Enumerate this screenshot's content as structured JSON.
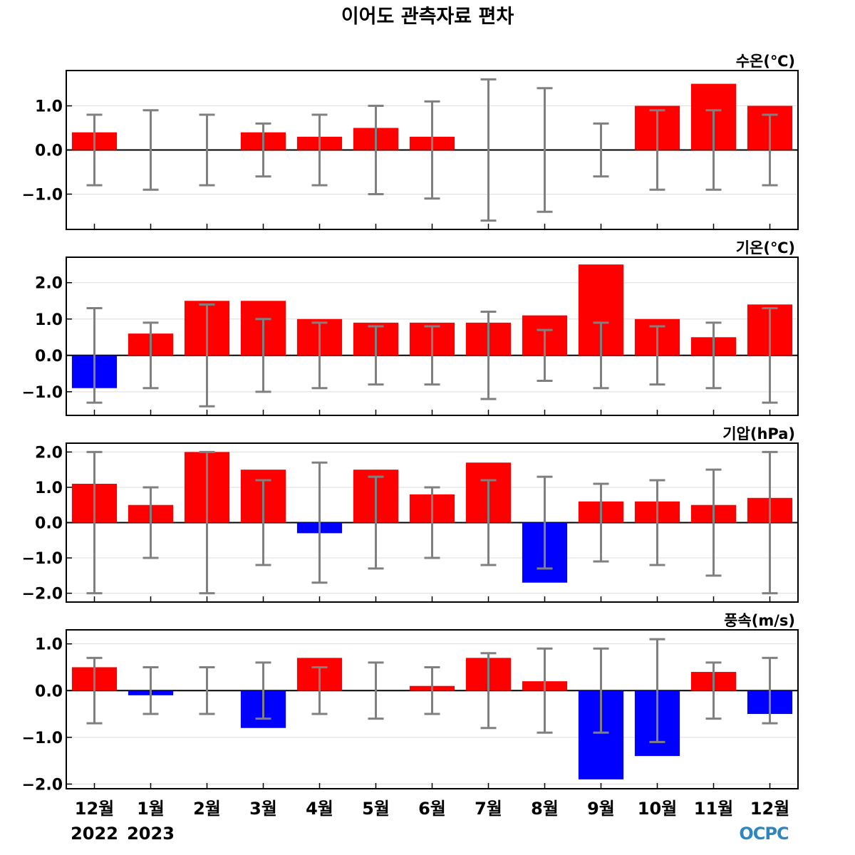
{
  "title": "이어도 관측자료 편차",
  "categories": [
    "12월",
    "1월",
    "2월",
    "3월",
    "4월",
    "5월",
    "6월",
    "7월",
    "8월",
    "9월",
    "10월",
    "11월",
    "12월"
  ],
  "year_labels": [
    {
      "text": "2022",
      "category_index": 0
    },
    {
      "text": "2023",
      "category_index": 1
    }
  ],
  "logo": "OCPC",
  "colors": {
    "positive": "#ff0000",
    "negative": "#0000ff",
    "errorbar": "#808080",
    "zero_line": "#000000",
    "grid": "#dddddd"
  },
  "chart_data": [
    {
      "type": "bar",
      "title": "수온(℃)",
      "categories": [
        "12월",
        "1월",
        "2월",
        "3월",
        "4월",
        "5월",
        "6월",
        "7월",
        "8월",
        "9월",
        "10월",
        "11월",
        "12월"
      ],
      "values": [
        0.4,
        0.0,
        0.0,
        0.4,
        0.3,
        0.5,
        0.3,
        0.0,
        0.0,
        0.0,
        1.0,
        1.5,
        1.0
      ],
      "error_upper": [
        0.8,
        0.9,
        0.8,
        0.6,
        0.8,
        1.0,
        1.1,
        1.6,
        1.4,
        0.6,
        0.9,
        0.9,
        0.8
      ],
      "error_lower": [
        -0.8,
        -0.9,
        -0.8,
        -0.6,
        -0.8,
        -1.0,
        -1.1,
        -1.6,
        -1.4,
        -0.6,
        -0.9,
        -0.9,
        -0.8
      ],
      "ylim": [
        -1.8,
        1.8
      ],
      "yticks": [
        -1.0,
        0.0,
        1.0
      ],
      "ytick_labels": [
        "−1.0",
        "0.0",
        "1.0"
      ],
      "grid": true
    },
    {
      "type": "bar",
      "title": "기온(℃)",
      "categories": [
        "12월",
        "1월",
        "2월",
        "3월",
        "4월",
        "5월",
        "6월",
        "7월",
        "8월",
        "9월",
        "10월",
        "11월",
        "12월"
      ],
      "values": [
        -0.9,
        0.6,
        1.5,
        1.5,
        1.0,
        0.9,
        0.9,
        0.9,
        1.1,
        2.5,
        1.0,
        0.5,
        1.4
      ],
      "error_upper": [
        1.3,
        0.9,
        1.4,
        1.0,
        0.9,
        0.8,
        0.8,
        1.2,
        0.7,
        0.9,
        0.8,
        0.9,
        1.3
      ],
      "error_lower": [
        -1.3,
        -0.9,
        -1.4,
        -1.0,
        -0.9,
        -0.8,
        -0.8,
        -1.2,
        -0.7,
        -0.9,
        -0.8,
        -0.9,
        -1.3
      ],
      "ylim": [
        -1.65,
        2.7
      ],
      "yticks": [
        -1.0,
        0.0,
        1.0,
        2.0
      ],
      "ytick_labels": [
        "−1.0",
        "0.0",
        "1.0",
        "2.0"
      ],
      "grid": true
    },
    {
      "type": "bar",
      "title": "기압(hPa)",
      "categories": [
        "12월",
        "1월",
        "2월",
        "3월",
        "4월",
        "5월",
        "6월",
        "7월",
        "8월",
        "9월",
        "10월",
        "11월",
        "12월"
      ],
      "values": [
        1.1,
        0.5,
        2.0,
        1.5,
        -0.3,
        1.5,
        0.8,
        1.7,
        -1.7,
        0.6,
        0.6,
        0.5,
        0.7
      ],
      "error_upper": [
        2.0,
        1.0,
        2.0,
        1.2,
        1.7,
        1.3,
        1.0,
        1.2,
        1.3,
        1.1,
        1.2,
        1.5,
        2.0
      ],
      "error_lower": [
        -2.0,
        -1.0,
        -2.0,
        -1.2,
        -1.7,
        -1.3,
        -1.0,
        -1.2,
        -1.3,
        -1.1,
        -1.2,
        -1.5,
        -2.0
      ],
      "ylim": [
        -2.25,
        2.25
      ],
      "yticks": [
        -2.0,
        -1.0,
        0.0,
        1.0,
        2.0
      ],
      "ytick_labels": [
        "−2.0",
        "−1.0",
        "0.0",
        "1.0",
        "2.0"
      ],
      "grid": true
    },
    {
      "type": "bar",
      "title": "풍속(m/s)",
      "categories": [
        "12월",
        "1월",
        "2월",
        "3월",
        "4월",
        "5월",
        "6월",
        "7월",
        "8월",
        "9월",
        "10월",
        "11월",
        "12월"
      ],
      "values": [
        0.5,
        -0.1,
        0.0,
        -0.8,
        0.7,
        0.0,
        0.1,
        0.7,
        0.2,
        -1.9,
        -1.4,
        0.4,
        -0.5
      ],
      "error_upper": [
        0.7,
        0.5,
        0.5,
        0.6,
        0.5,
        0.6,
        0.5,
        0.8,
        0.9,
        0.9,
        1.1,
        0.6,
        0.7
      ],
      "error_lower": [
        -0.7,
        -0.5,
        -0.5,
        -0.6,
        -0.5,
        -0.6,
        -0.5,
        -0.8,
        -0.9,
        -0.9,
        -1.1,
        -0.6,
        -0.7
      ],
      "ylim": [
        -2.1,
        1.3
      ],
      "yticks": [
        -2.0,
        -1.0,
        0.0,
        1.0
      ],
      "ytick_labels": [
        "−2.0",
        "−1.0",
        "0.0",
        "1.0"
      ],
      "grid": true
    }
  ]
}
